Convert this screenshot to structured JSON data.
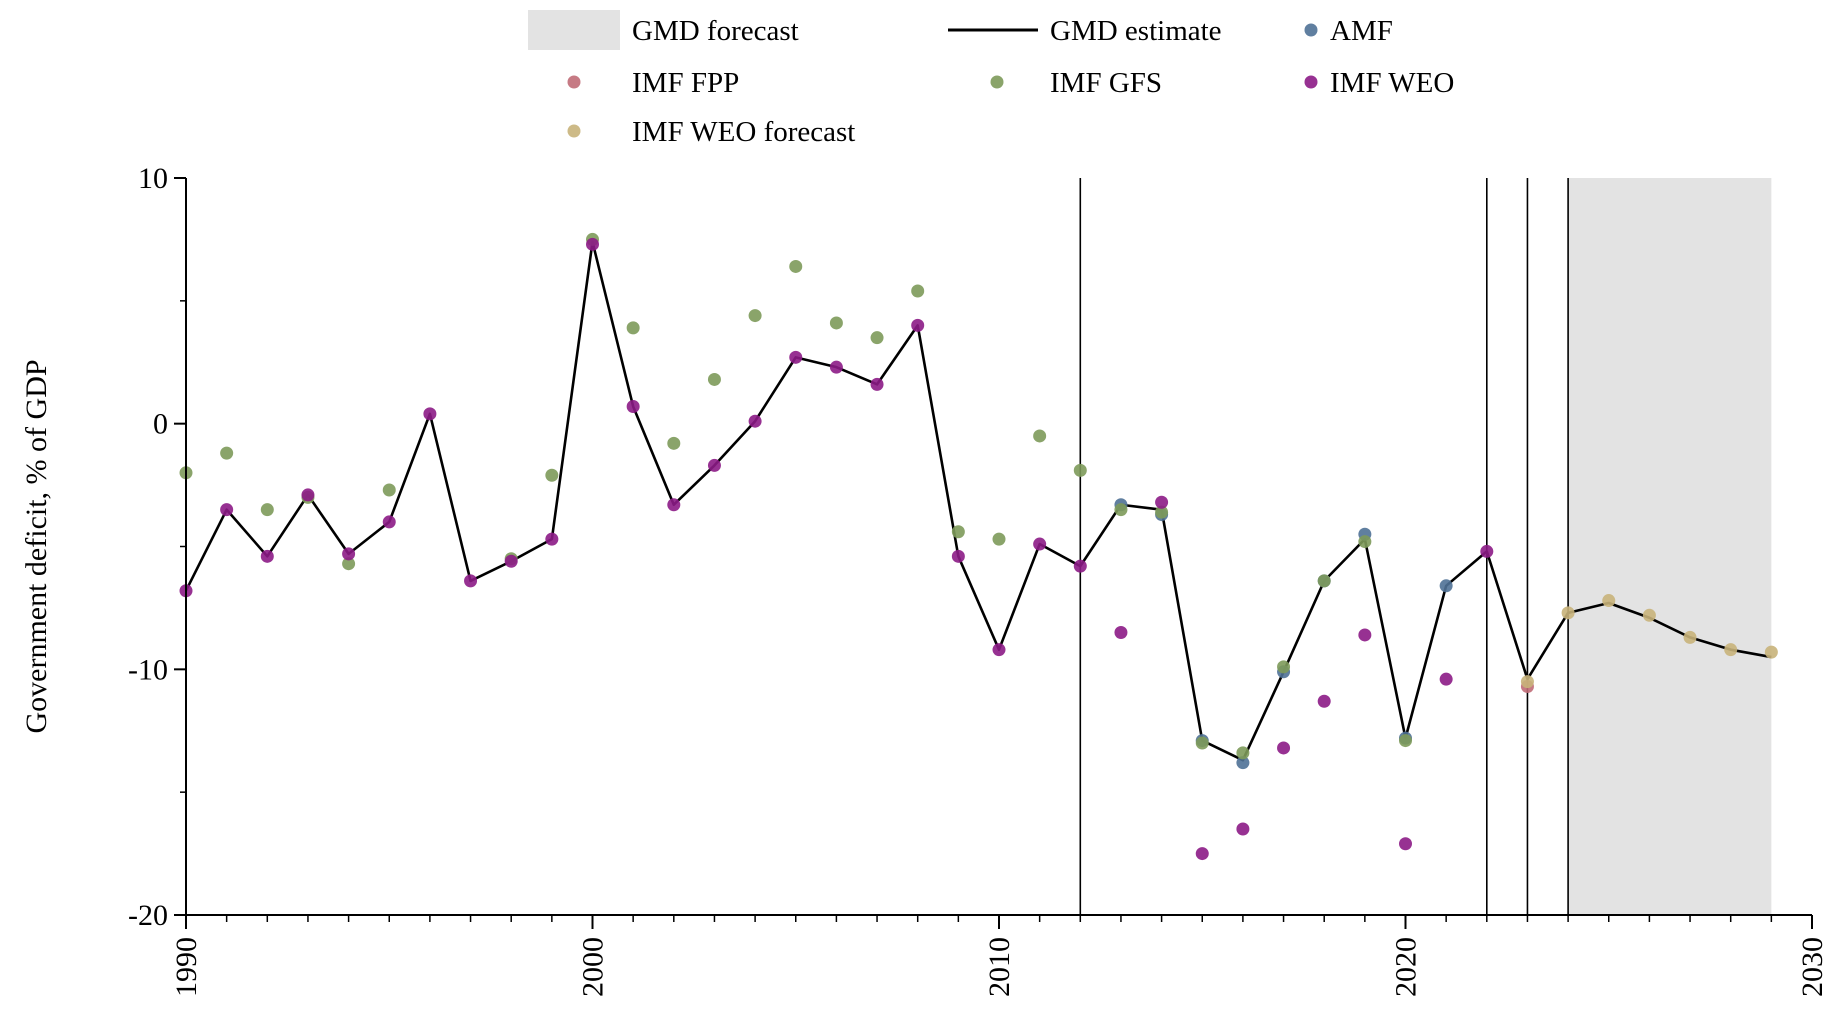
{
  "chart_data": {
    "type": "line",
    "xlabel": "",
    "ylabel": "Government deficit, % of GDP",
    "xlim": [
      1990,
      2030
    ],
    "ylim": [
      -20,
      10
    ],
    "xticks": [
      1990,
      2000,
      2010,
      2020,
      2030
    ],
    "yticks": [
      -20,
      -10,
      0,
      10
    ],
    "grid": false,
    "legend_position": "top",
    "vertical_lines": [
      2012,
      2022,
      2023,
      2024
    ],
    "forecast_region": [
      2024,
      2029
    ],
    "legend": [
      {
        "name": "GMD forecast",
        "kind": "area",
        "color": "#e3e3e3"
      },
      {
        "name": "GMD estimate",
        "kind": "line",
        "color": "#000000"
      },
      {
        "name": "AMF",
        "kind": "marker",
        "color": "#4f7196"
      },
      {
        "name": "IMF FPP",
        "kind": "marker",
        "color": "#c06b77"
      },
      {
        "name": "IMF GFS",
        "kind": "marker",
        "color": "#7d9a5a"
      },
      {
        "name": "IMF WEO",
        "kind": "marker",
        "color": "#8c1b86"
      },
      {
        "name": "IMF WEO forecast",
        "kind": "marker",
        "color": "#c8b37a"
      }
    ],
    "series": [
      {
        "name": "GMD estimate",
        "type": "line",
        "color": "#000000",
        "x": [
          1990,
          1991,
          1992,
          1993,
          1994,
          1995,
          1996,
          1997,
          1998,
          1999,
          2000,
          2001,
          2002,
          2003,
          2004,
          2005,
          2006,
          2007,
          2008,
          2009,
          2010,
          2011,
          2012,
          2013,
          2014,
          2015,
          2016,
          2017,
          2018,
          2019,
          2020,
          2021,
          2022,
          2023,
          2024,
          2025,
          2026,
          2027,
          2028,
          2029
        ],
        "y": [
          -6.8,
          -3.5,
          -5.4,
          -2.9,
          -5.3,
          -4.0,
          0.4,
          -6.4,
          -5.6,
          -4.7,
          7.4,
          0.7,
          -3.3,
          -1.7,
          0.1,
          2.7,
          2.3,
          1.6,
          4.0,
          -5.4,
          -9.2,
          -4.9,
          -5.8,
          -3.3,
          -3.5,
          -12.9,
          -13.7,
          -10.1,
          -6.4,
          -4.7,
          -12.8,
          -6.6,
          -5.2,
          -10.4,
          -7.7,
          -7.3,
          -7.9,
          -8.7,
          -9.2,
          -9.5
        ]
      },
      {
        "name": "AMF",
        "type": "scatter",
        "color": "#4f7196",
        "x": [
          2013,
          2014,
          2015,
          2016,
          2017,
          2018,
          2019,
          2020,
          2021
        ],
        "y": [
          -3.3,
          -3.7,
          -12.9,
          -13.8,
          -10.1,
          -6.4,
          -4.5,
          -12.8,
          -6.6
        ]
      },
      {
        "name": "IMF FPP",
        "type": "scatter",
        "color": "#c06b77",
        "x": [
          2023
        ],
        "y": [
          -10.7
        ]
      },
      {
        "name": "IMF GFS",
        "type": "scatter",
        "color": "#7d9a5a",
        "x": [
          1990,
          1991,
          1992,
          1993,
          1994,
          1995,
          1998,
          1999,
          2000,
          2001,
          2002,
          2003,
          2004,
          2005,
          2006,
          2007,
          2008,
          2009,
          2010,
          2011,
          2012,
          2013,
          2014,
          2015,
          2016,
          2017,
          2018,
          2019,
          2020
        ],
        "y": [
          -2.0,
          -1.2,
          -3.5,
          -3.0,
          -5.7,
          -2.7,
          -5.5,
          -2.1,
          7.5,
          3.9,
          -0.8,
          1.8,
          4.4,
          6.4,
          4.1,
          3.5,
          5.4,
          -4.4,
          -4.7,
          -0.5,
          -1.9,
          -3.5,
          -3.6,
          -13.0,
          -13.4,
          -9.9,
          -6.4,
          -4.8,
          -12.9
        ]
      },
      {
        "name": "IMF WEO",
        "type": "scatter",
        "color": "#8c1b86",
        "x": [
          1990,
          1991,
          1992,
          1993,
          1994,
          1995,
          1996,
          1997,
          1998,
          1999,
          2000,
          2001,
          2002,
          2003,
          2004,
          2005,
          2006,
          2007,
          2008,
          2009,
          2010,
          2011,
          2012,
          2013,
          2014,
          2015,
          2016,
          2017,
          2018,
          2019,
          2020,
          2021,
          2022
        ],
        "y": [
          -6.8,
          -3.5,
          -5.4,
          -2.9,
          -5.3,
          -4.0,
          0.4,
          -6.4,
          -5.6,
          -4.7,
          7.3,
          0.7,
          -3.3,
          -1.7,
          0.1,
          2.7,
          2.3,
          1.6,
          4.0,
          -5.4,
          -9.2,
          -4.9,
          -5.8,
          -8.5,
          -3.2,
          -17.5,
          -16.5,
          -13.2,
          -11.3,
          -8.6,
          -17.1,
          -10.4,
          -5.2
        ]
      },
      {
        "name": "IMF WEO forecast",
        "type": "scatter",
        "color": "#c8b37a",
        "x": [
          2023,
          2024,
          2025,
          2026,
          2027,
          2028,
          2029
        ],
        "y": [
          -10.5,
          -7.7,
          -7.2,
          -7.8,
          -8.7,
          -9.2,
          -9.3
        ]
      }
    ]
  }
}
